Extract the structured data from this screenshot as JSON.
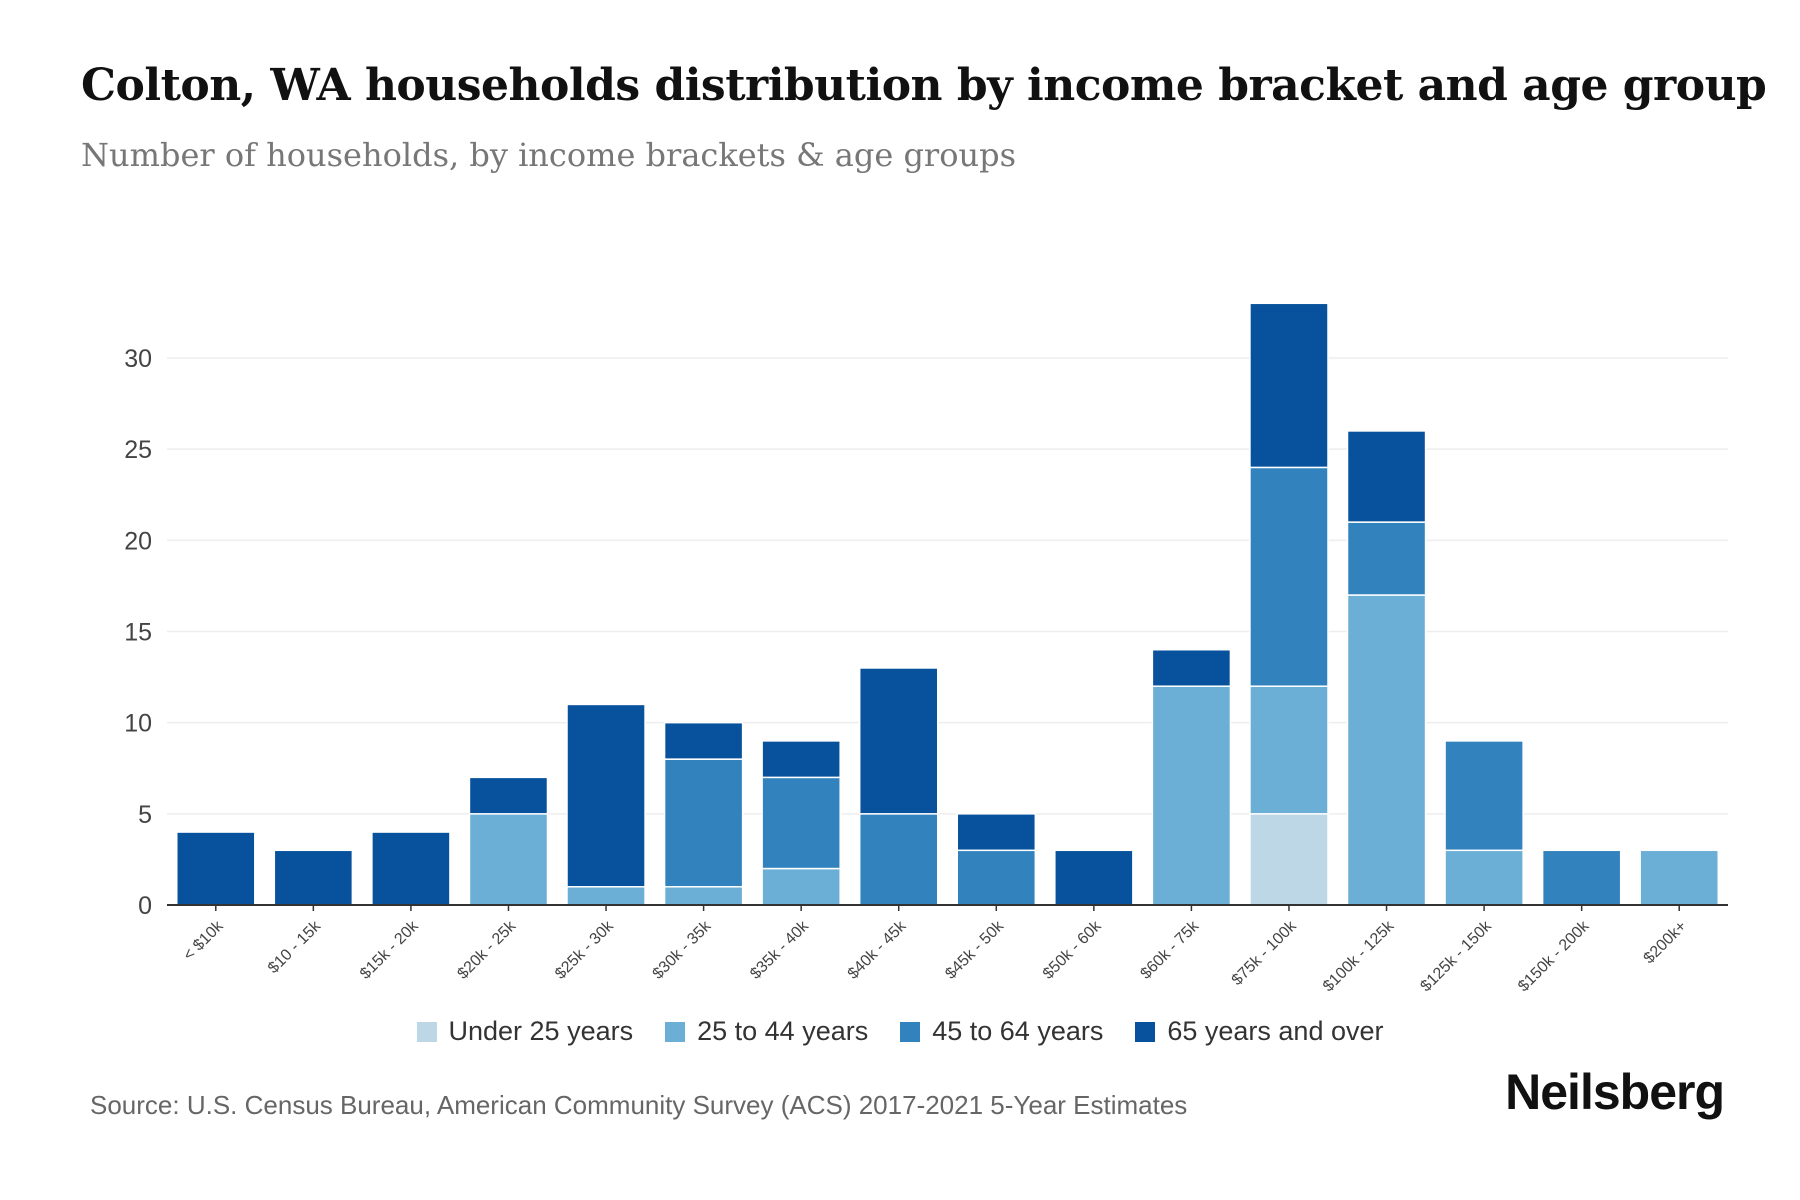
{
  "title": "Colton, WA households distribution by income bracket and age group",
  "subtitle": "Number of households, by income brackets & age groups",
  "source": "Source: U.S. Census Bureau, American Community Survey (ACS) 2017-2021 5-Year Estimates",
  "logo": "Neilsberg",
  "chart_data": {
    "type": "bar",
    "stacked": true,
    "title": "Colton, WA households distribution by income bracket and age group",
    "xlabel": "",
    "ylabel": "",
    "ylim": [
      0,
      33
    ],
    "yticks": [
      0,
      5,
      10,
      15,
      20,
      25,
      30
    ],
    "grid": true,
    "legend_position": "bottom",
    "categories": [
      "< $10k",
      "$10 - 15k",
      "$15k - 20k",
      "$20k - 25k",
      "$25k - 30k",
      "$30k - 35k",
      "$35k - 40k",
      "$40k - 45k",
      "$45k - 50k",
      "$50k - 60k",
      "$60k - 75k",
      "$75k - 100k",
      "$100k - 125k",
      "$125k - 150k",
      "$150k - 200k",
      "$200k+"
    ],
    "series": [
      {
        "name": "Under 25 years",
        "color": "#bdd7e7",
        "values": [
          0,
          0,
          0,
          0,
          0,
          0,
          0,
          0,
          0,
          0,
          0,
          5,
          0,
          0,
          0,
          0
        ]
      },
      {
        "name": "25 to 44 years",
        "color": "#6baed6",
        "values": [
          0,
          0,
          0,
          5,
          1,
          1,
          2,
          0,
          0,
          0,
          12,
          7,
          17,
          3,
          0,
          3
        ]
      },
      {
        "name": "45 to 64 years",
        "color": "#3182bd",
        "values": [
          0,
          0,
          0,
          0,
          0,
          7,
          5,
          5,
          3,
          0,
          0,
          12,
          4,
          6,
          3,
          0
        ]
      },
      {
        "name": "65 years and over",
        "color": "#08519c",
        "values": [
          4,
          3,
          4,
          2,
          10,
          2,
          2,
          8,
          2,
          3,
          2,
          9,
          5,
          0,
          0,
          0
        ]
      }
    ]
  }
}
